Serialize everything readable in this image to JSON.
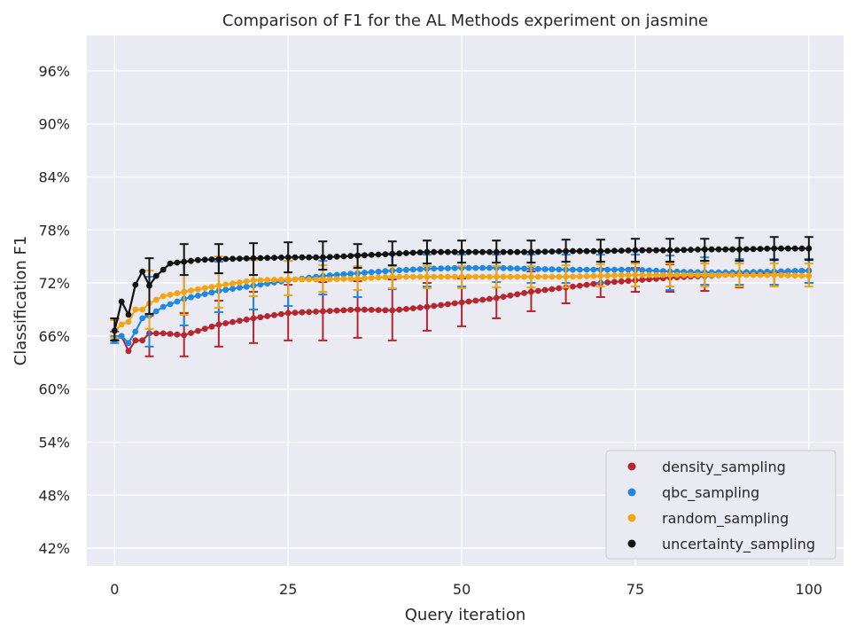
{
  "chart_data": {
    "type": "scatter",
    "title": "Comparison of F1 for the AL Methods experiment on jasmine",
    "xlabel": "Query iteration",
    "ylabel": "Classification F1",
    "xlim": [
      -4,
      105
    ],
    "ylim": [
      0.4,
      1.0
    ],
    "xticks": [
      0,
      25,
      50,
      75,
      100
    ],
    "yticks": [
      0.42,
      0.48,
      0.54,
      0.6,
      0.66,
      0.72,
      0.78,
      0.84,
      0.9,
      0.96
    ],
    "ytick_labels": [
      "42%",
      "48%",
      "54%",
      "60%",
      "66%",
      "72%",
      "78%",
      "84%",
      "90%",
      "96%"
    ],
    "grid": true,
    "legend_position": "bottom-right",
    "background": "#eaeaf2",
    "series": [
      {
        "name": "density_sampling",
        "color": "#b5262e",
        "anchors_x": [
          0,
          1,
          2,
          3,
          4,
          5,
          7,
          10,
          15,
          20,
          25,
          30,
          35,
          40,
          45,
          50,
          55,
          60,
          65,
          70,
          75,
          80,
          85,
          90,
          95,
          100
        ],
        "anchors_y": [
          0.655,
          0.66,
          0.643,
          0.655,
          0.655,
          0.663,
          0.663,
          0.661,
          0.673,
          0.68,
          0.686,
          0.688,
          0.69,
          0.689,
          0.693,
          0.698,
          0.703,
          0.71,
          0.715,
          0.72,
          0.723,
          0.726,
          0.728,
          0.73,
          0.732,
          0.734
        ],
        "errorbars": {
          "x": [
            0,
            5,
            10,
            15,
            20,
            25,
            30,
            35,
            40,
            45,
            50,
            55,
            60,
            65,
            70,
            75,
            80,
            85,
            90,
            95,
            100
          ],
          "lower": [
            0.655,
            0.637,
            0.637,
            0.648,
            0.652,
            0.655,
            0.655,
            0.658,
            0.655,
            0.666,
            0.671,
            0.68,
            0.688,
            0.697,
            0.704,
            0.71,
            0.71,
            0.711,
            0.715,
            0.718,
            0.72
          ],
          "upper": [
            0.665,
            0.683,
            0.686,
            0.7,
            0.71,
            0.718,
            0.721,
            0.722,
            0.724,
            0.72,
            0.725,
            0.727,
            0.733,
            0.735,
            0.736,
            0.737,
            0.741,
            0.745,
            0.745,
            0.746,
            0.747
          ]
        }
      },
      {
        "name": "qbc_sampling",
        "color": "#1e88e5",
        "anchors_x": [
          0,
          1,
          2,
          3,
          4,
          5,
          7,
          10,
          15,
          20,
          25,
          30,
          35,
          40,
          45,
          50,
          55,
          60,
          65,
          70,
          75,
          80,
          85,
          90,
          95,
          100
        ],
        "anchors_y": [
          0.655,
          0.66,
          0.652,
          0.665,
          0.68,
          0.683,
          0.693,
          0.702,
          0.711,
          0.717,
          0.723,
          0.728,
          0.731,
          0.734,
          0.736,
          0.737,
          0.737,
          0.736,
          0.735,
          0.735,
          0.735,
          0.733,
          0.732,
          0.732,
          0.733,
          0.734
        ],
        "errorbars": {
          "x": [
            0,
            5,
            10,
            15,
            20,
            25,
            30,
            35,
            40,
            45,
            50,
            55,
            60,
            65,
            70,
            75,
            80,
            85,
            90,
            95,
            100
          ],
          "lower": [
            0.652,
            0.648,
            0.672,
            0.687,
            0.69,
            0.694,
            0.707,
            0.704,
            0.713,
            0.716,
            0.716,
            0.721,
            0.72,
            0.72,
            0.72,
            0.716,
            0.712,
            0.718,
            0.718,
            0.718,
            0.72
          ],
          "upper": [
            0.66,
            0.727,
            0.744,
            0.744,
            0.746,
            0.745,
            0.745,
            0.752,
            0.752,
            0.752,
            0.752,
            0.752,
            0.752,
            0.752,
            0.752,
            0.752,
            0.751,
            0.749,
            0.747,
            0.747,
            0.747
          ]
        }
      },
      {
        "name": "random_sampling",
        "color": "#f2a413",
        "anchors_x": [
          0,
          1,
          2,
          3,
          4,
          5,
          7,
          10,
          15,
          20,
          25,
          30,
          35,
          40,
          45,
          50,
          55,
          60,
          65,
          70,
          75,
          80,
          85,
          90,
          95,
          100
        ],
        "anchors_y": [
          0.665,
          0.673,
          0.676,
          0.69,
          0.69,
          0.697,
          0.705,
          0.71,
          0.717,
          0.723,
          0.724,
          0.724,
          0.725,
          0.727,
          0.727,
          0.727,
          0.727,
          0.727,
          0.727,
          0.728,
          0.729,
          0.729,
          0.729,
          0.729,
          0.729,
          0.728
        ],
        "errorbars": {
          "x": [
            0,
            5,
            10,
            15,
            20,
            25,
            30,
            35,
            40,
            45,
            50,
            55,
            60,
            65,
            70,
            75,
            80,
            85,
            90,
            95,
            100
          ],
          "lower": [
            0.658,
            0.668,
            0.684,
            0.692,
            0.705,
            0.706,
            0.71,
            0.712,
            0.714,
            0.714,
            0.714,
            0.715,
            0.715,
            0.715,
            0.716,
            0.716,
            0.716,
            0.716,
            0.716,
            0.716,
            0.716
          ],
          "upper": [
            0.678,
            0.734,
            0.744,
            0.75,
            0.746,
            0.745,
            0.74,
            0.739,
            0.739,
            0.739,
            0.739,
            0.739,
            0.739,
            0.74,
            0.741,
            0.742,
            0.742,
            0.742,
            0.742,
            0.742,
            0.742
          ]
        }
      },
      {
        "name": "uncertainty_sampling",
        "color": "#111111",
        "anchors_x": [
          0,
          1,
          2,
          3,
          4,
          5,
          6,
          7,
          8,
          10,
          12,
          15,
          20,
          25,
          30,
          35,
          40,
          45,
          50,
          55,
          60,
          65,
          70,
          75,
          80,
          85,
          90,
          95,
          100
        ],
        "anchors_y": [
          0.666,
          0.699,
          0.684,
          0.718,
          0.733,
          0.717,
          0.728,
          0.735,
          0.742,
          0.744,
          0.746,
          0.747,
          0.748,
          0.749,
          0.749,
          0.751,
          0.753,
          0.755,
          0.755,
          0.755,
          0.755,
          0.756,
          0.756,
          0.757,
          0.757,
          0.758,
          0.758,
          0.759,
          0.759
        ],
        "errorbars": {
          "x": [
            0,
            5,
            10,
            15,
            20,
            25,
            30,
            35,
            40,
            45,
            50,
            55,
            60,
            65,
            70,
            75,
            80,
            85,
            90,
            95,
            100
          ],
          "lower": [
            0.655,
            0.685,
            0.729,
            0.731,
            0.729,
            0.732,
            0.735,
            0.737,
            0.74,
            0.742,
            0.743,
            0.743,
            0.743,
            0.744,
            0.744,
            0.744,
            0.744,
            0.745,
            0.745,
            0.746,
            0.746
          ],
          "upper": [
            0.68,
            0.748,
            0.764,
            0.764,
            0.765,
            0.766,
            0.767,
            0.764,
            0.767,
            0.768,
            0.768,
            0.768,
            0.768,
            0.769,
            0.769,
            0.77,
            0.77,
            0.77,
            0.771,
            0.772,
            0.772
          ]
        }
      }
    ]
  }
}
